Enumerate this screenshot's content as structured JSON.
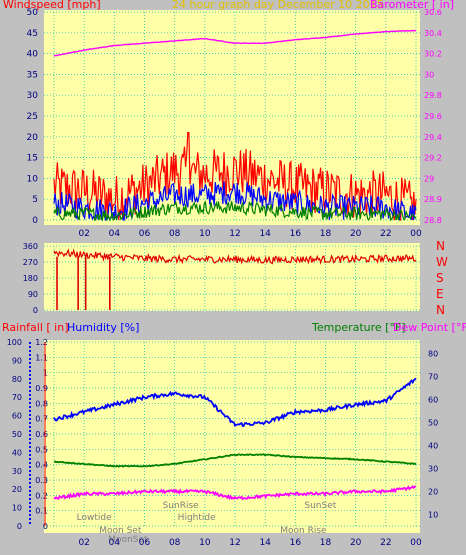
{
  "header": {
    "windspeed_label": "Windspeed [mph]",
    "title": "24 hour graph day   December 10 2015",
    "barometer_label": "Barometer [ in]"
  },
  "lower_header": {
    "rainfall_label": "Rainfall [ in]",
    "humidity_label": "Humidity [%]",
    "temperature_label": "Temperature [°F]",
    "dewpoint_label": "Dew Point [°F]"
  },
  "colors": {
    "background": "#c0c0c0",
    "plot_bg": "#ffffa8",
    "grid": "#00c0c0",
    "axis_text_dark": "#000080",
    "wind_gust": "#ff0000",
    "wind_avg": "#0000ff",
    "wind_low": "#008000",
    "barometer": "#ff00ff",
    "wind_dir": "#e00000",
    "humidity": "#0000ff",
    "temperature": "#008000",
    "dewpoint": "#ff00ff",
    "rain": "#ff0000",
    "event_text": "#808080"
  },
  "x_axis": {
    "ticks": [
      "02",
      "04",
      "06",
      "08",
      "10",
      "12",
      "14",
      "16",
      "18",
      "20",
      "22",
      "00"
    ]
  },
  "chart_data": [
    {
      "id": "wind_baro",
      "type": "line",
      "xlabel": "",
      "y_left": {
        "label": "Windspeed [mph]",
        "ticks": [
          "0",
          "5",
          "10",
          "15",
          "20",
          "25",
          "30",
          "35",
          "40",
          "45",
          "50"
        ],
        "ylim": [
          0,
          50
        ]
      },
      "y_right": {
        "label": "Barometer [ in]",
        "ticks": [
          "28.8",
          "28.9",
          "29",
          "29.2",
          "29.4",
          "29.6",
          "29.8",
          "30",
          "30.2",
          "30.4",
          "30.6"
        ],
        "ylim": [
          28.8,
          30.6
        ]
      },
      "x_hours": [
        0,
        2,
        4,
        6,
        8,
        10,
        12,
        14,
        16,
        18,
        20,
        22,
        24
      ],
      "series": [
        {
          "axis": "left",
          "color_key": "wind_gust",
          "values": [
            8,
            7,
            5,
            8,
            12,
            11,
            12,
            10,
            8,
            7,
            6,
            6,
            3
          ],
          "peak": 21
        },
        {
          "axis": "left",
          "color_key": "wind_avg",
          "values": [
            4,
            3,
            2,
            4,
            6,
            6,
            7,
            5,
            4,
            3,
            3,
            3,
            1
          ]
        },
        {
          "axis": "left",
          "color_key": "wind_low",
          "values": [
            1.5,
            1.5,
            1,
            2,
            3,
            3,
            3,
            2.5,
            2,
            1.5,
            1.5,
            1.5,
            0.5
          ]
        },
        {
          "axis": "right",
          "color_key": "barometer",
          "values": [
            30.22,
            30.27,
            30.31,
            30.33,
            30.35,
            30.37,
            30.33,
            30.33,
            30.36,
            30.38,
            30.41,
            30.43,
            30.44
          ]
        }
      ]
    },
    {
      "id": "wind_direction",
      "type": "line",
      "xlabel": "",
      "y_left": {
        "ticks": [
          "0",
          "90",
          "180",
          "270",
          "360"
        ],
        "ylim": [
          0,
          360
        ]
      },
      "y_right": {
        "ticks": [
          "N",
          "W",
          "S",
          "E",
          "N"
        ]
      },
      "x_hours": [
        0,
        2,
        4,
        6,
        8,
        10,
        12,
        14,
        16,
        18,
        20,
        22,
        24
      ],
      "series": [
        {
          "color_key": "wind_dir",
          "values": [
            325,
            310,
            300,
            290,
            285,
            285,
            285,
            280,
            285,
            285,
            285,
            290,
            290
          ],
          "spikes_to_zero_hours": [
            0.2,
            1.6,
            2.1,
            3.7
          ]
        }
      ]
    },
    {
      "id": "rain_hum_temp",
      "type": "line",
      "xlabel": "",
      "y_left_outer": {
        "label": "Rainfall [ in]",
        "ticks": [
          "0",
          "0.1",
          "0.2",
          "0.3",
          "0.4",
          "0.5",
          "0.6",
          "0.7",
          "0.8",
          "0.9",
          "1",
          "1.1",
          "1.2"
        ],
        "ylim": [
          0,
          1.2
        ]
      },
      "y_left_inner": {
        "label": "Humidity [%]",
        "ticks": [
          "0",
          "10",
          "20",
          "30",
          "40",
          "50",
          "60",
          "70",
          "80",
          "90",
          "100"
        ],
        "ylim": [
          0,
          100
        ]
      },
      "y_right": {
        "label": "Temperature [°F]",
        "ticks": [
          "10",
          "20",
          "30",
          "40",
          "50",
          "60",
          "70",
          "80"
        ],
        "ylim": [
          5,
          85
        ]
      },
      "x_hours": [
        0,
        2,
        4,
        6,
        8,
        10,
        12,
        14,
        16,
        18,
        20,
        22,
        24
      ],
      "series": [
        {
          "axis": "inner",
          "color_key": "humidity",
          "values": [
            58,
            62,
            66,
            70,
            72,
            70,
            55,
            56,
            62,
            63,
            66,
            68,
            80
          ]
        },
        {
          "axis": "right",
          "color_key": "temperature",
          "values": [
            33,
            32,
            31,
            31,
            32,
            34,
            36,
            36,
            35,
            34.5,
            34,
            33,
            32
          ]
        },
        {
          "axis": "right",
          "color_key": "dewpoint",
          "values": [
            17,
            19,
            19,
            20,
            20,
            20,
            17,
            18,
            19,
            19,
            20,
            20,
            22
          ]
        }
      ],
      "events": [
        {
          "label": "Lowtide",
          "hour": 1.5,
          "row": 1
        },
        {
          "label": "Moon Set",
          "hour": 3.0,
          "row": 2
        },
        {
          "label": "MoonSet",
          "hour": 3.6,
          "row": 3
        },
        {
          "label": "SunRise",
          "hour": 7.2,
          "row": 0
        },
        {
          "label": "Hightide",
          "hour": 8.2,
          "row": 1
        },
        {
          "label": "SunSet",
          "hour": 16.6,
          "row": 0
        },
        {
          "label": "Moon Rise",
          "hour": 15.0,
          "row": 2
        }
      ]
    }
  ]
}
